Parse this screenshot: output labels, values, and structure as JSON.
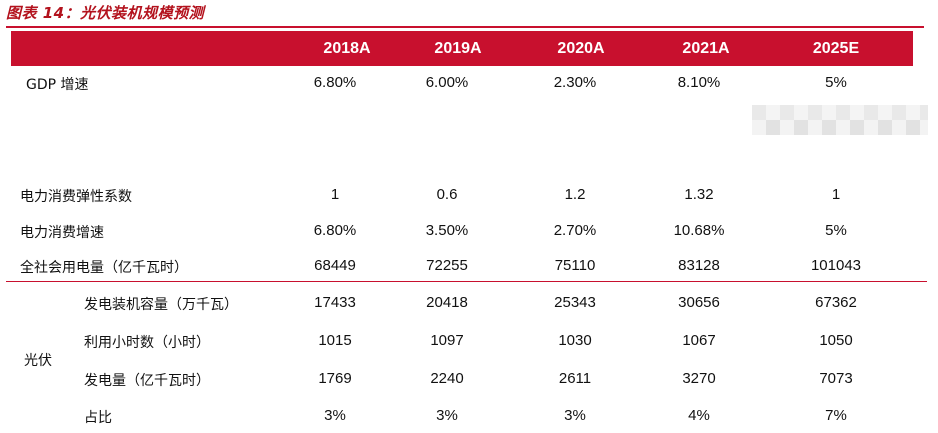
{
  "title": "图表 14：光伏装机规模预测",
  "header": {
    "years": [
      "2018A",
      "2019A",
      "2020A",
      "2021A",
      "2025E"
    ]
  },
  "rows": [
    {
      "label": "GDP 增速",
      "values": [
        "6.80%",
        "6.00%",
        "2.30%",
        "8.10%",
        "5%"
      ]
    },
    {
      "label": "电力消费弹性系数",
      "values": [
        "1",
        "0.6",
        "1.2",
        "1.32",
        "1"
      ]
    },
    {
      "label": "电力消费增速",
      "values": [
        "6.80%",
        "3.50%",
        "2.70%",
        "10.68%",
        "5%"
      ]
    },
    {
      "label": "全社会用电量（亿千瓦时）",
      "values": [
        "68449",
        "72255",
        "75110",
        "83128",
        "101043"
      ]
    }
  ],
  "pv": {
    "group_label": "光伏",
    "rows": [
      {
        "label": "发电装机容量（万千瓦）",
        "values": [
          "17433",
          "20418",
          "25343",
          "30656",
          "67362"
        ]
      },
      {
        "label": "利用小时数（小时）",
        "values": [
          "1015",
          "1097",
          "1030",
          "1067",
          "1050"
        ]
      },
      {
        "label": "发电量（亿千瓦时）",
        "values": [
          "1769",
          "2240",
          "2611",
          "3270",
          "7073"
        ]
      },
      {
        "label": "占比",
        "values": [
          "3%",
          "3%",
          "3%",
          "4%",
          "7%"
        ]
      }
    ]
  }
}
